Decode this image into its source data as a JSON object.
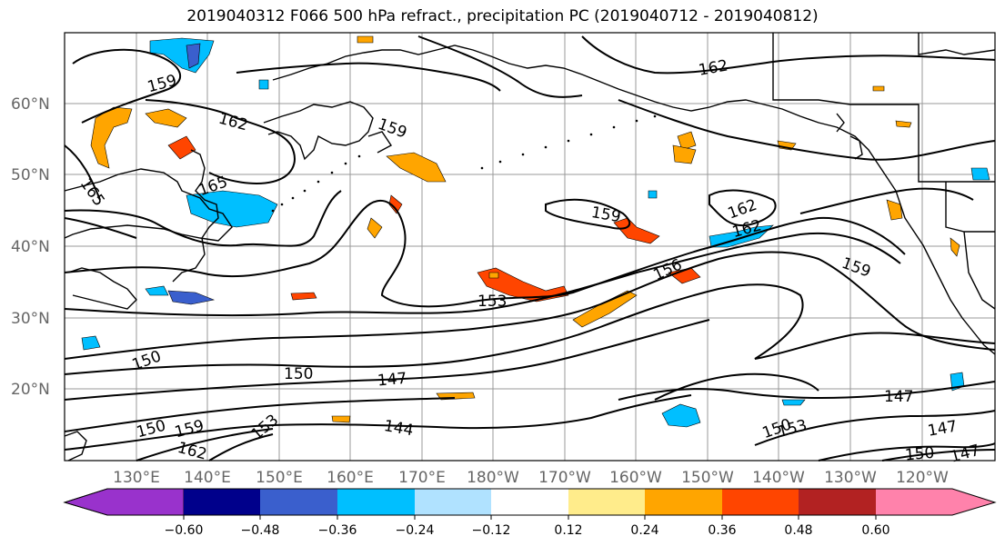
{
  "title": "2019040312 F066 500 hPa refract., precipitation PC (2019040712 - 2019040812)",
  "map": {
    "lat_ticks": [
      "60°N",
      "50°N",
      "40°N",
      "30°N",
      "20°N"
    ],
    "lon_ticks": [
      "130°E",
      "140°E",
      "150°E",
      "160°E",
      "170°E",
      "180°W",
      "170°W",
      "160°W",
      "150°W",
      "140°W",
      "130°W",
      "120°W"
    ],
    "contour_labels": [
      "159",
      "162",
      "165",
      "165",
      "159",
      "162",
      "162",
      "159",
      "162",
      "156",
      "159",
      "153",
      "150",
      "150",
      "147",
      "144",
      "150",
      "159",
      "162",
      "153",
      "150",
      "153",
      "147",
      "147",
      "150",
      "147"
    ]
  },
  "colorbar": {
    "tick_labels": [
      "−0.60",
      "−0.48",
      "−0.36",
      "−0.24",
      "−0.12",
      "0.12",
      "0.24",
      "0.36",
      "0.48",
      "0.60"
    ],
    "colors": [
      "#9932cc",
      "#00008b",
      "#3a5fcd",
      "#00bfff",
      "#b0e2ff",
      "#ffffff",
      "#ffec8b",
      "#ffa500",
      "#ff4500",
      "#b22222",
      "#ff82ab"
    ]
  },
  "colors": {
    "contour": "#000000",
    "grid": "#999999",
    "coast": "#000000"
  }
}
